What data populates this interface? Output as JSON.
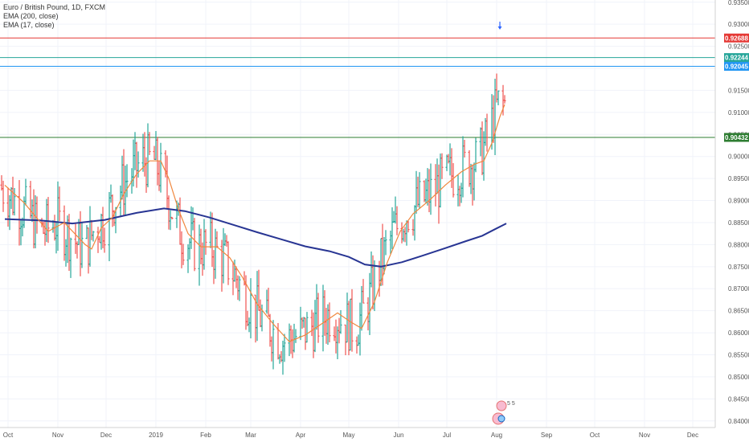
{
  "legend": {
    "symbol_line": "Euro / British Pound, 1D, FXCM",
    "ema_slow_label": "EMA (200, close)",
    "ema_fast_label": "EMA (17, close)"
  },
  "chart_data": {
    "type": "candlestick",
    "title": "Euro / British Pound, 1D, FXCM",
    "ylim": [
      0.8385,
      0.9355
    ],
    "y_ticks": [
      0.935,
      0.93,
      0.925,
      0.92,
      0.915,
      0.91,
      0.905,
      0.9,
      0.895,
      0.89,
      0.885,
      0.88,
      0.875,
      0.87,
      0.865,
      0.86,
      0.855,
      0.85,
      0.845,
      0.84
    ],
    "y_tick_labels": [
      "0.93500",
      "0.93000",
      "0.92500",
      "0.92000",
      "0.91500",
      "0.91000",
      "0.90500",
      "0.90000",
      "0.89500",
      "0.89000",
      "0.88500",
      "0.88000",
      "0.87500",
      "0.87000",
      "0.86500",
      "0.86000",
      "0.85500",
      "0.85000",
      "0.84500",
      "0.84000"
    ],
    "x_ticks": [
      {
        "label": "Oct",
        "day": 0
      },
      {
        "label": "Nov",
        "day": 31
      },
      {
        "label": "Dec",
        "day": 61
      },
      {
        "label": "2019",
        "day": 92
      },
      {
        "label": "Feb",
        "day": 123
      },
      {
        "label": "Mar",
        "day": 151
      },
      {
        "label": "Apr",
        "day": 182
      },
      {
        "label": "May",
        "day": 212
      },
      {
        "label": "Jun",
        "day": 243
      },
      {
        "label": "Jul",
        "day": 273
      },
      {
        "label": "Aug",
        "day": 304
      },
      {
        "label": "Sep",
        "day": 335
      },
      {
        "label": "Oct",
        "day": 365
      },
      {
        "label": "Nov",
        "day": 396
      },
      {
        "label": "Dec",
        "day": 426
      }
    ],
    "horizontal_levels": [
      {
        "value": 0.92688,
        "label": "0.92688",
        "color": "#e53935"
      },
      {
        "value": 0.92244,
        "label": "0.92244",
        "color": "#26a69a"
      },
      {
        "value": 0.92045,
        "label": "0.92045",
        "color": "#2196f3"
      },
      {
        "value": 0.90432,
        "label": "0.90432",
        "color": "#2e7d32"
      }
    ],
    "ema200_points": [
      [
        -2,
        0.8858
      ],
      [
        20,
        0.8855
      ],
      [
        40,
        0.8848
      ],
      [
        60,
        0.8856
      ],
      [
        80,
        0.8872
      ],
      [
        97,
        0.8882
      ],
      [
        110,
        0.8876
      ],
      [
        125,
        0.8862
      ],
      [
        140,
        0.8845
      ],
      [
        155,
        0.8828
      ],
      [
        170,
        0.8812
      ],
      [
        185,
        0.8796
      ],
      [
        200,
        0.8785
      ],
      [
        212,
        0.8772
      ],
      [
        222,
        0.8755
      ],
      [
        232,
        0.875
      ],
      [
        245,
        0.876
      ],
      [
        258,
        0.8775
      ],
      [
        272,
        0.8792
      ],
      [
        285,
        0.8808
      ],
      [
        295,
        0.882
      ],
      [
        303,
        0.8835
      ],
      [
        310,
        0.8848
      ]
    ],
    "ema17_points": [
      [
        -2,
        0.8935
      ],
      [
        10,
        0.8895
      ],
      [
        18,
        0.886
      ],
      [
        25,
        0.883
      ],
      [
        35,
        0.885
      ],
      [
        48,
        0.88
      ],
      [
        52,
        0.879
      ],
      [
        58,
        0.8838
      ],
      [
        65,
        0.8862
      ],
      [
        72,
        0.8915
      ],
      [
        80,
        0.896
      ],
      [
        88,
        0.899
      ],
      [
        95,
        0.899
      ],
      [
        100,
        0.895
      ],
      [
        106,
        0.888
      ],
      [
        112,
        0.8825
      ],
      [
        120,
        0.8795
      ],
      [
        130,
        0.8795
      ],
      [
        138,
        0.877
      ],
      [
        146,
        0.8725
      ],
      [
        155,
        0.8665
      ],
      [
        165,
        0.862
      ],
      [
        175,
        0.858
      ],
      [
        185,
        0.8595
      ],
      [
        195,
        0.862
      ],
      [
        205,
        0.8645
      ],
      [
        213,
        0.8625
      ],
      [
        220,
        0.861
      ],
      [
        228,
        0.867
      ],
      [
        236,
        0.876
      ],
      [
        244,
        0.883
      ],
      [
        252,
        0.887
      ],
      [
        262,
        0.89
      ],
      [
        272,
        0.8935
      ],
      [
        282,
        0.8965
      ],
      [
        290,
        0.8982
      ],
      [
        296,
        0.899
      ],
      [
        301,
        0.903
      ],
      [
        306,
        0.909
      ],
      [
        309,
        0.9118
      ]
    ],
    "marker": {
      "type": "arrow-down",
      "day": 306,
      "value": 0.9295
    },
    "events_badge": {
      "day": 306,
      "text": "5 5"
    }
  }
}
